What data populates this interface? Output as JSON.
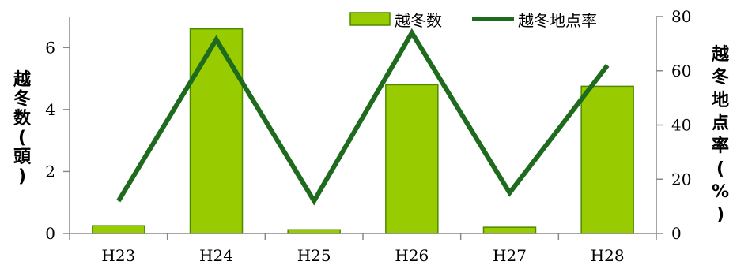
{
  "chart_data": {
    "type": "bar",
    "categories": [
      "H23",
      "H24",
      "H25",
      "H26",
      "H27",
      "H28"
    ],
    "series": [
      {
        "name": "越冬数",
        "type": "bar",
        "axis": "left",
        "values": [
          0.25,
          6.6,
          0.12,
          4.8,
          0.2,
          4.75
        ]
      },
      {
        "name": "越冬地点率",
        "type": "line",
        "axis": "right",
        "values": [
          12,
          71.5,
          12,
          74,
          15,
          62
        ]
      }
    ],
    "y_left": {
      "label": "越冬数(頭)",
      "ylim": [
        0,
        7
      ],
      "ticks": [
        "0",
        "2",
        "4",
        "6"
      ]
    },
    "y_right": {
      "label": "越冬地点率(%)",
      "ylim": [
        0,
        80
      ],
      "ticks": [
        "0",
        "20",
        "40",
        "60",
        "80"
      ]
    },
    "grid": false,
    "legend_position": "top-right",
    "colors": {
      "bar_fill": "#99cc00",
      "bar_stroke": "#4d8a00",
      "line": "#1e6b1e",
      "axis": "#888888"
    }
  }
}
